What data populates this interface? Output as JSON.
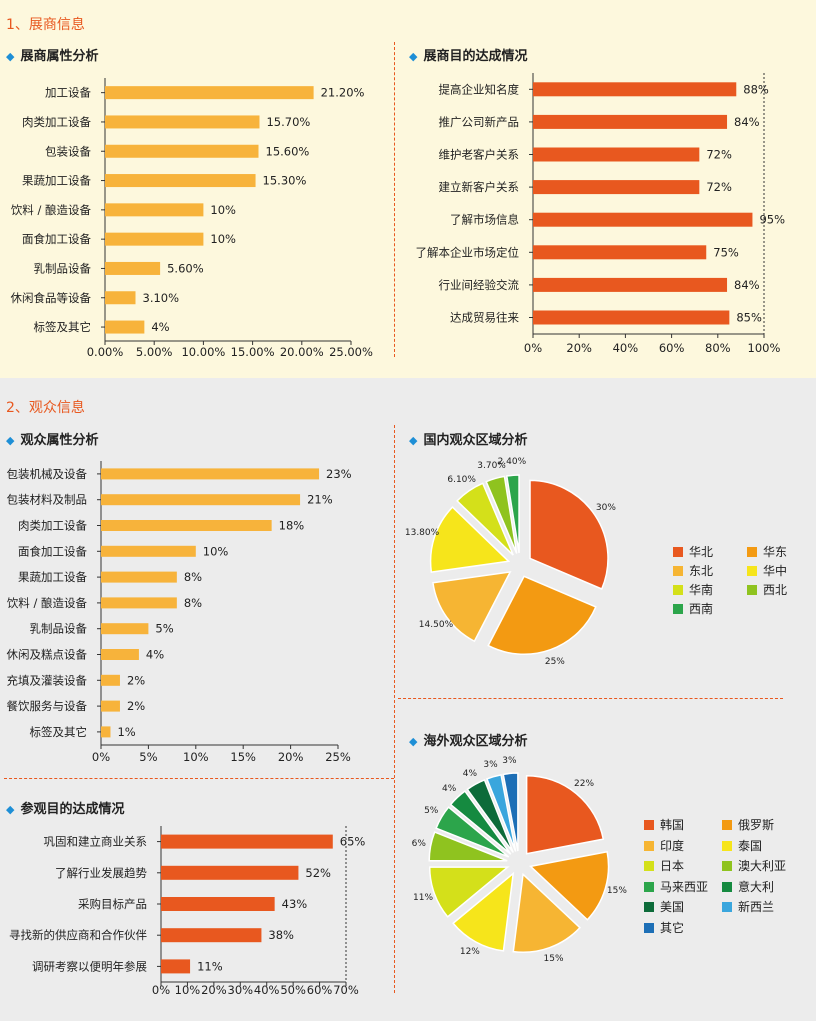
{
  "sections": {
    "s1_title": "1、展商信息",
    "s2_title": "2、观众信息"
  },
  "subtitles": {
    "exhibitor_attr": "展商属性分析",
    "exhibitor_goal": "展商目的达成情况",
    "visitor_attr": "观众属性分析",
    "domestic": "国内观众区域分析",
    "visit_goal": "参观目的达成情况",
    "overseas": "海外观众区域分析"
  },
  "colors": {
    "accent": "#e8581f",
    "bar_yellow": "#f7b33b",
    "bar_orange": "#e8581f",
    "diamond": "#1e8fd6"
  },
  "chart_data": [
    {
      "id": "exhibitor_attr",
      "type": "bar",
      "orientation": "horizontal",
      "categories": [
        "加工设备",
        "肉类加工设备",
        "包装设备",
        "果蔬加工设备",
        "饮料 / 酿造设备",
        "面食加工设备",
        "乳制品设备",
        "休闲食品等设备",
        "标签及其它"
      ],
      "values": [
        21.2,
        15.7,
        15.6,
        15.3,
        10,
        10,
        5.6,
        3.1,
        4
      ],
      "value_labels": [
        "21.20%",
        "15.70%",
        "15.60%",
        "15.30%",
        "10%",
        "10%",
        "5.60%",
        "3.10%",
        "4%"
      ],
      "ticks": [
        "0.00%",
        "5.00%",
        "10.00%",
        "15.00%",
        "20.00%",
        "25.00%"
      ],
      "xlim": [
        0,
        25
      ],
      "color": "#f7b33b"
    },
    {
      "id": "exhibitor_goal",
      "type": "bar",
      "orientation": "horizontal",
      "categories": [
        "提高企业知名度",
        "推广公司新产品",
        "维护老客户关系",
        "建立新客户关系",
        "了解市场信息",
        "了解本企业市场定位",
        "行业间经验交流",
        "达成贸易往来"
      ],
      "values": [
        88,
        84,
        72,
        72,
        95,
        75,
        84,
        85
      ],
      "value_labels": [
        "88%",
        "84%",
        "72%",
        "72%",
        "95%",
        "75%",
        "84%",
        "85%"
      ],
      "ticks": [
        "0%",
        "20%",
        "40%",
        "60%",
        "80%",
        "100%"
      ],
      "xlim": [
        0,
        100
      ],
      "color": "#e8581f"
    },
    {
      "id": "visitor_attr",
      "type": "bar",
      "orientation": "horizontal",
      "categories": [
        "包装机械及设备",
        "包装材料及制品",
        "肉类加工设备",
        "面食加工设备",
        "果蔬加工设备",
        "饮料 / 酿造设备",
        "乳制品设备",
        "休闲及糕点设备",
        "充填及灌装设备",
        "餐饮服务与设备",
        "标签及其它"
      ],
      "values": [
        23,
        21,
        18,
        10,
        8,
        8,
        5,
        4,
        2,
        2,
        1
      ],
      "value_labels": [
        "23%",
        "21%",
        "18%",
        "10%",
        "8%",
        "8%",
        "5%",
        "4%",
        "2%",
        "2%",
        "1%"
      ],
      "ticks": [
        "0%",
        "5%",
        "10%",
        "15%",
        "20%",
        "25%"
      ],
      "xlim": [
        0,
        25
      ],
      "color": "#f7b33b"
    },
    {
      "id": "visit_goal",
      "type": "bar",
      "orientation": "horizontal",
      "categories": [
        "巩固和建立商业关系",
        "了解行业发展趋势",
        "采购目标产品",
        "寻找新的供应商和合作伙伴",
        "调研考察以便明年参展"
      ],
      "values": [
        65,
        52,
        43,
        38,
        11
      ],
      "value_labels": [
        "65%",
        "52%",
        "43%",
        "38%",
        "11%"
      ],
      "ticks": [
        "0%",
        "10%",
        "20%",
        "30%",
        "40%",
        "50%",
        "60%",
        "70%"
      ],
      "xlim": [
        0,
        70
      ],
      "color": "#e8581f"
    },
    {
      "id": "domestic",
      "type": "pie",
      "labels": [
        "华北",
        "华东",
        "东北",
        "华中",
        "华南",
        "西北",
        "西南"
      ],
      "values": [
        30,
        25,
        14.5,
        13.8,
        6.1,
        3.7,
        2.4
      ],
      "value_labels": [
        "30%",
        "25%",
        "14.50%",
        "13.80%",
        "6.10%",
        "3.70%",
        "2.40%"
      ],
      "colors": [
        "#e8581f",
        "#f39a12",
        "#f6b533",
        "#f6e51b",
        "#d4e01a",
        "#8fc31f",
        "#2ca54b"
      ]
    },
    {
      "id": "overseas",
      "type": "pie",
      "labels": [
        "韩国",
        "俄罗斯",
        "印度",
        "泰国",
        "日本",
        "澳大利亚",
        "马来西亚",
        "意大利",
        "美国",
        "新西兰",
        "其它"
      ],
      "values": [
        22,
        15,
        15,
        12,
        11,
        6,
        5,
        4,
        4,
        3,
        3
      ],
      "value_labels": [
        "22%",
        "15%",
        "15%",
        "12%",
        "11%",
        "6%",
        "5%",
        "4%",
        "4%",
        "3%",
        "3%"
      ],
      "colors": [
        "#e8581f",
        "#f39a12",
        "#f6b533",
        "#f6e51b",
        "#d4e01a",
        "#8fc31f",
        "#2ca54b",
        "#158a40",
        "#0d6b3a",
        "#3aa6dd",
        "#1d6fb6"
      ]
    }
  ]
}
